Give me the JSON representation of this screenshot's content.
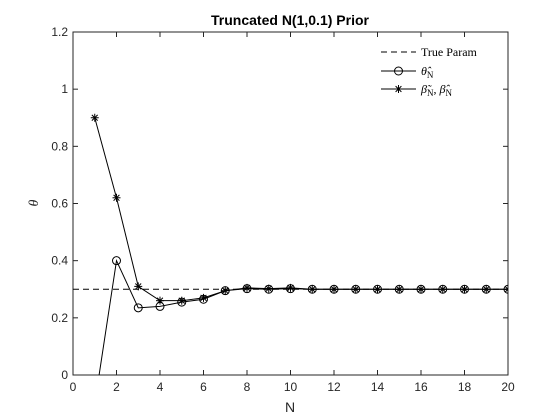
{
  "chart_data": {
    "type": "line",
    "title": "Truncated N(1,0.1) Prior",
    "xlabel": "N",
    "ylabel": "θ",
    "xlim": [
      0,
      20
    ],
    "ylim": [
      0,
      1.2
    ],
    "xticks": [
      0,
      2,
      4,
      6,
      8,
      10,
      12,
      14,
      16,
      18,
      20
    ],
    "yticks": [
      0,
      0.2,
      0.4,
      0.6,
      0.8,
      1,
      1.2
    ],
    "xtick_labels": [
      "0",
      "2",
      "4",
      "6",
      "8",
      "10",
      "12",
      "14",
      "16",
      "18",
      "20"
    ],
    "ytick_labels": [
      "0",
      "0.2",
      "0.4",
      "0.6",
      "0.8",
      "1",
      "1.2"
    ],
    "grid": false,
    "legend_position": "top-right",
    "series": [
      {
        "name": "True Param",
        "style": "dashed",
        "marker": "none",
        "color": "#000000",
        "x": [
          0,
          20
        ],
        "y": [
          0.3,
          0.3
        ]
      },
      {
        "name": "θ̂_N",
        "style": "solid",
        "marker": "circle",
        "color": "#000000",
        "x": [
          1,
          2,
          3,
          4,
          5,
          6,
          7,
          8,
          9,
          10,
          11,
          12,
          13,
          14,
          15,
          16,
          17,
          18,
          19,
          20
        ],
        "y": [
          -0.1,
          0.4,
          0.235,
          0.24,
          0.255,
          0.265,
          0.295,
          0.302,
          0.3,
          0.302,
          0.3,
          0.3,
          0.3,
          0.3,
          0.3,
          0.3,
          0.3,
          0.3,
          0.3,
          0.3
        ]
      },
      {
        "name": "β̃_N, β̂_N",
        "style": "solid",
        "marker": "star",
        "color": "#000000",
        "x": [
          1,
          2,
          3,
          4,
          5,
          6,
          7,
          8,
          9,
          10,
          11,
          12,
          13,
          14,
          15,
          16,
          17,
          18,
          19,
          20
        ],
        "y": [
          0.9,
          0.62,
          0.31,
          0.26,
          0.26,
          0.27,
          0.295,
          0.305,
          0.302,
          0.305,
          0.3,
          0.3,
          0.3,
          0.3,
          0.3,
          0.3,
          0.3,
          0.3,
          0.3,
          0.3
        ]
      }
    ]
  }
}
